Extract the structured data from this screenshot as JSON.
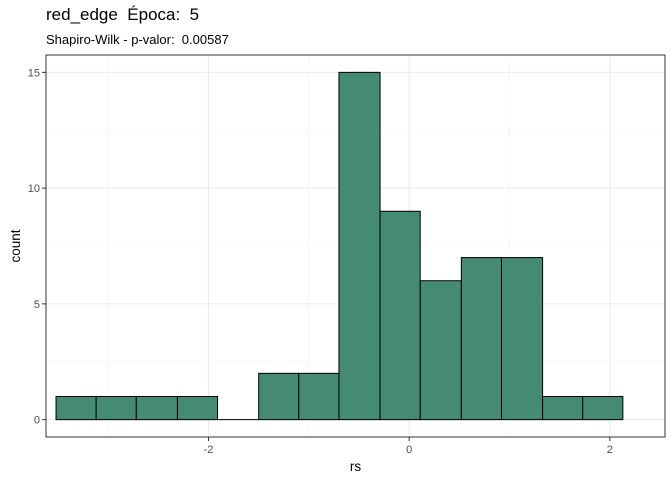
{
  "chart_data": {
    "type": "histogram",
    "title": "red_edge  Época:  5",
    "subtitle": "Shapiro-Wilk - p-valor:  0.00587",
    "xlabel": "rs",
    "ylabel": "count",
    "bins": [
      {
        "x0": -3.52,
        "x1": -3.12,
        "count": 1
      },
      {
        "x0": -3.12,
        "x1": -2.72,
        "count": 1
      },
      {
        "x0": -2.72,
        "x1": -2.31,
        "count": 1
      },
      {
        "x0": -2.31,
        "x1": -1.91,
        "count": 1
      },
      {
        "x0": -1.91,
        "x1": -1.5,
        "count": 0
      },
      {
        "x0": -1.5,
        "x1": -1.1,
        "count": 2
      },
      {
        "x0": -1.1,
        "x1": -0.7,
        "count": 2
      },
      {
        "x0": -0.7,
        "x1": -0.29,
        "count": 15
      },
      {
        "x0": -0.29,
        "x1": 0.11,
        "count": 9
      },
      {
        "x0": 0.11,
        "x1": 0.52,
        "count": 6
      },
      {
        "x0": 0.52,
        "x1": 0.92,
        "count": 7
      },
      {
        "x0": 0.92,
        "x1": 1.33,
        "count": 7
      },
      {
        "x0": 1.33,
        "x1": 1.73,
        "count": 1
      },
      {
        "x0": 1.73,
        "x1": 2.13,
        "count": 1
      }
    ],
    "xlim": [
      -3.62,
      2.55
    ],
    "ylim": [
      -0.75,
      15.75
    ],
    "xticks": [
      -2,
      0,
      2
    ],
    "yticks": [
      0,
      5,
      10,
      15
    ],
    "fill_color": "#458b74",
    "outline_color": "#000000",
    "grid": true
  }
}
